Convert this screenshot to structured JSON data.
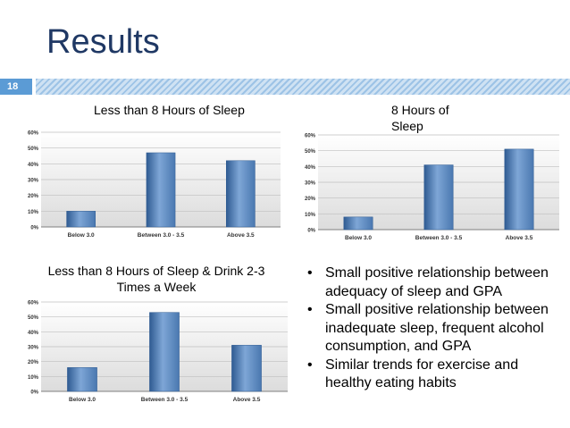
{
  "slide": {
    "title": "Results",
    "number": "18"
  },
  "captions": [
    "Less than 8 Hours of Sleep",
    "8 Hours of Sleep",
    "Less than 8 Hours of Sleep & Drink 2-3 Times a Week"
  ],
  "bullets": [
    "Small positive relationship between adequacy of sleep and GPA",
    "Small positive relationship between inadequate sleep, frequent alcohol consumption, and GPA",
    "Similar trends for exercise and healthy eating habits"
  ],
  "colors": {
    "bar": "#4a78b0",
    "title": "#1f3864",
    "accent": "#5b9bd5"
  },
  "chart_data": [
    {
      "type": "bar",
      "categories": [
        "Below 3.0",
        "Between 3.0 - 3.5",
        "Above 3.5"
      ],
      "values": [
        10,
        47,
        42
      ],
      "yticks": [
        "0%",
        "10%",
        "20%",
        "30%",
        "40%",
        "50%",
        "60%"
      ],
      "ylim": [
        0,
        60
      ],
      "grid": true
    },
    {
      "type": "bar",
      "categories": [
        "Below 3.0",
        "Between 3.0 - 3.5",
        "Above 3.5"
      ],
      "values": [
        8,
        41,
        51
      ],
      "yticks": [
        "0%",
        "10%",
        "20%",
        "30%",
        "40%",
        "50%",
        "60%"
      ],
      "ylim": [
        0,
        60
      ],
      "grid": true
    },
    {
      "type": "bar",
      "categories": [
        "Below 3.0",
        "Between 3.0 - 3.5",
        "Above 3.5"
      ],
      "values": [
        16,
        53,
        31
      ],
      "yticks": [
        "0%",
        "10%",
        "20%",
        "30%",
        "40%",
        "50%",
        "60%"
      ],
      "ylim": [
        0,
        60
      ],
      "grid": true
    }
  ]
}
